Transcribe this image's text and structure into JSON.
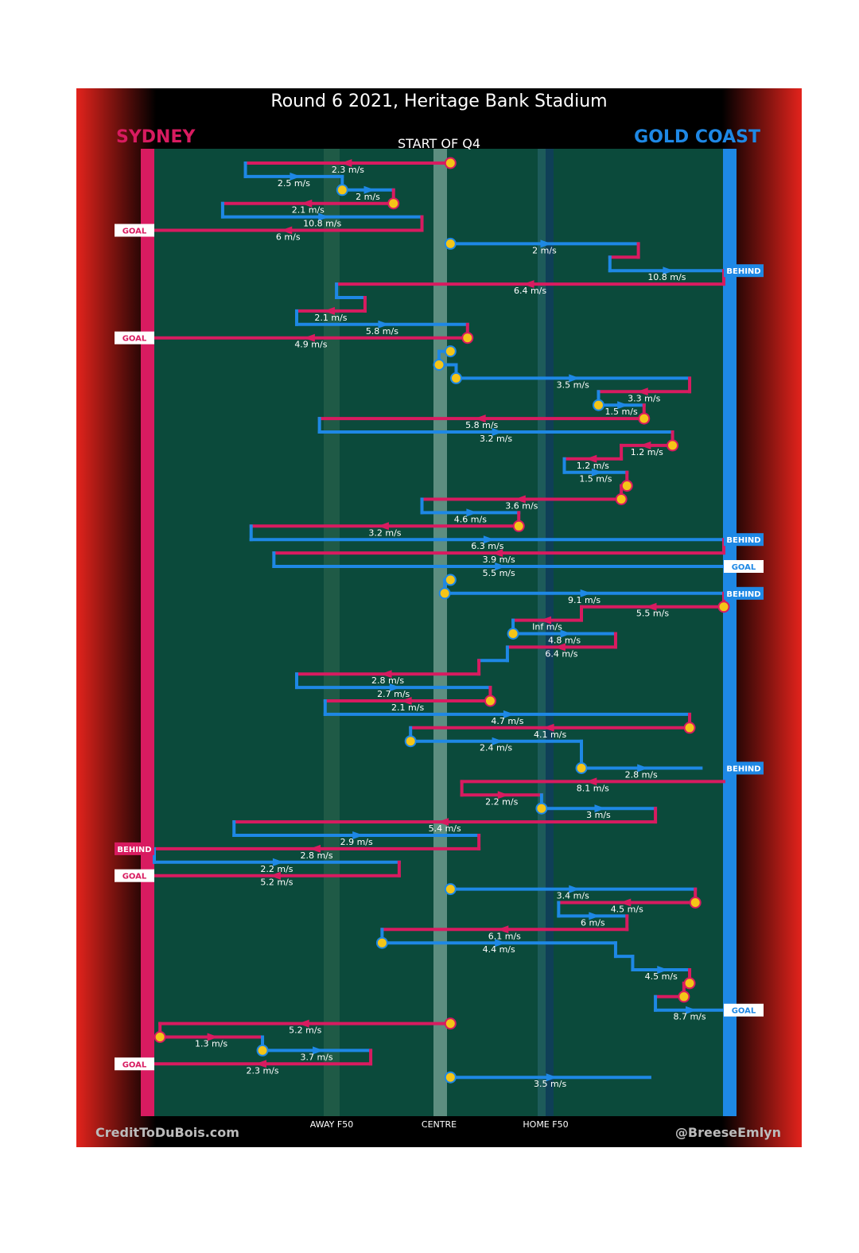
{
  "chart_data": {
    "type": "line",
    "title": "Round 6 2021, Heritage Bank Stadium",
    "subtitle": "START OF Q4",
    "teams": {
      "left": {
        "name": "SYDNEY",
        "color": "#d81b60"
      },
      "right": {
        "name": "GOLD COAST",
        "color": "#1e88e5"
      }
    },
    "colors": {
      "field": "#0b4a3b",
      "ball_marker": "#f5c518",
      "background_edge": "#e0221c"
    },
    "field_markers": [
      "AWAY F50",
      "CENTRE",
      "HOME F50"
    ],
    "credits": {
      "left": "CreditToDuBois.com",
      "right": "@BreeseEmlyn"
    },
    "x_range": [
      0,
      100
    ],
    "chains": [
      {
        "y": 1,
        "team": "SYDNEY",
        "x": [
          52,
          16
        ],
        "speed": "2.3 m/s"
      },
      {
        "y": 2,
        "team": "GOLD COAST",
        "x": [
          16,
          33
        ],
        "speed": "2.5 m/s"
      },
      {
        "y": 3,
        "team": "GOLD COAST",
        "x": [
          33,
          42
        ],
        "speed": "2 m/s"
      },
      {
        "y": 4,
        "team": "SYDNEY",
        "x": [
          42,
          12
        ],
        "speed": "2.1 m/s"
      },
      {
        "y": 5,
        "team": "GOLD COAST",
        "x": [
          12,
          47
        ],
        "speed": "10.8 m/s"
      },
      {
        "y": 6,
        "team": "SYDNEY",
        "x": [
          47,
          0
        ],
        "speed": "6 m/s",
        "result": "GOAL"
      },
      {
        "y": 7,
        "team": "GOLD COAST",
        "x": [
          52,
          85
        ],
        "speed": "2 m/s"
      },
      {
        "y": 8,
        "team": "SYDNEY",
        "x": [
          85,
          80
        ],
        "speed": ""
      },
      {
        "y": 9,
        "team": "GOLD COAST",
        "x": [
          80,
          100
        ],
        "speed": "10.8 m/s",
        "result": "BEHIND"
      },
      {
        "y": 10,
        "team": "SYDNEY",
        "x": [
          100,
          32
        ],
        "speed": "6.4 m/s"
      },
      {
        "y": 11,
        "team": "GOLD COAST",
        "x": [
          32,
          37
        ],
        "speed": ""
      },
      {
        "y": 12,
        "team": "SYDNEY",
        "x": [
          37,
          25
        ],
        "speed": "2.1 m/s"
      },
      {
        "y": 13,
        "team": "GOLD COAST",
        "x": [
          25,
          55
        ],
        "speed": "5.8 m/s"
      },
      {
        "y": 14,
        "team": "SYDNEY",
        "x": [
          55,
          0
        ],
        "speed": "4.9 m/s",
        "result": "GOAL"
      },
      {
        "y": 15,
        "team": "GOLD COAST",
        "x": [
          52,
          50
        ],
        "speed": ""
      },
      {
        "y": 16,
        "team": "GOLD COAST",
        "x": [
          50,
          53
        ],
        "speed": ""
      },
      {
        "y": 17,
        "team": "GOLD COAST",
        "x": [
          53,
          94
        ],
        "speed": "3.5 m/s"
      },
      {
        "y": 18,
        "team": "SYDNEY",
        "x": [
          94,
          78
        ],
        "speed": "3.3 m/s"
      },
      {
        "y": 19,
        "team": "GOLD COAST",
        "x": [
          78,
          86
        ],
        "speed": "1.5 m/s"
      },
      {
        "y": 20,
        "team": "SYDNEY",
        "x": [
          86,
          29
        ],
        "speed": "5.8 m/s"
      },
      {
        "y": 21,
        "team": "GOLD COAST",
        "x": [
          29,
          91
        ],
        "speed": "3.2 m/s"
      },
      {
        "y": 22,
        "team": "SYDNEY",
        "x": [
          91,
          82
        ],
        "speed": "1.2 m/s"
      },
      {
        "y": 23,
        "team": "SYDNEY",
        "x": [
          82,
          72
        ],
        "speed": "1.2 m/s"
      },
      {
        "y": 24,
        "team": "GOLD COAST",
        "x": [
          72,
          83
        ],
        "speed": "1.5 m/s"
      },
      {
        "y": 25,
        "team": "SYDNEY",
        "x": [
          83,
          82
        ],
        "speed": ""
      },
      {
        "y": 26,
        "team": "SYDNEY",
        "x": [
          82,
          47
        ],
        "speed": "3.6 m/s"
      },
      {
        "y": 27,
        "team": "GOLD COAST",
        "x": [
          47,
          64
        ],
        "speed": "4.6 m/s"
      },
      {
        "y": 28,
        "team": "SYDNEY",
        "x": [
          64,
          17
        ],
        "speed": "3.2 m/s"
      },
      {
        "y": 29,
        "team": "GOLD COAST",
        "x": [
          17,
          100
        ],
        "speed": "6.3 m/s",
        "result": "BEHIND"
      },
      {
        "y": 30,
        "team": "SYDNEY",
        "x": [
          100,
          21
        ],
        "speed": "3.9 m/s"
      },
      {
        "y": 31,
        "team": "GOLD COAST",
        "x": [
          21,
          100
        ],
        "speed": "5.5 m/s",
        "result": "GOAL"
      },
      {
        "y": 32,
        "team": "GOLD COAST",
        "x": [
          52,
          51
        ],
        "speed": ""
      },
      {
        "y": 33,
        "team": "GOLD COAST",
        "x": [
          51,
          100
        ],
        "speed": "9.1 m/s",
        "result": "BEHIND"
      },
      {
        "y": 34,
        "team": "SYDNEY",
        "x": [
          100,
          75
        ],
        "speed": "5.5 m/s"
      },
      {
        "y": 35,
        "team": "SYDNEY",
        "x": [
          75,
          63
        ],
        "speed": "Inf m/s"
      },
      {
        "y": 36,
        "team": "GOLD COAST",
        "x": [
          63,
          81
        ],
        "speed": "4.8 m/s"
      },
      {
        "y": 37,
        "team": "SYDNEY",
        "x": [
          81,
          62
        ],
        "speed": "6.4 m/s"
      },
      {
        "y": 38,
        "team": "GOLD COAST",
        "x": [
          62,
          57
        ],
        "speed": ""
      },
      {
        "y": 39,
        "team": "SYDNEY",
        "x": [
          57,
          25
        ],
        "speed": "2.8 m/s"
      },
      {
        "y": 40,
        "team": "GOLD COAST",
        "x": [
          25,
          59
        ],
        "speed": "2.7 m/s"
      },
      {
        "y": 41,
        "team": "SYDNEY",
        "x": [
          59,
          30
        ],
        "speed": "2.1 m/s"
      },
      {
        "y": 42,
        "team": "GOLD COAST",
        "x": [
          30,
          94
        ],
        "speed": "4.7 m/s"
      },
      {
        "y": 43,
        "team": "SYDNEY",
        "x": [
          94,
          45
        ],
        "speed": "4.1 m/s"
      },
      {
        "y": 44,
        "team": "GOLD COAST",
        "x": [
          45,
          75
        ],
        "speed": "2.4 m/s"
      },
      {
        "y": 45,
        "team": "GOLD COAST",
        "x": [
          75,
          75
        ],
        "speed": ""
      },
      {
        "y": 46,
        "team": "GOLD COAST",
        "x": [
          75,
          96
        ],
        "speed": "2.8 m/s",
        "result": "BEHIND"
      },
      {
        "y": 47,
        "team": "SYDNEY",
        "x": [
          100,
          54
        ],
        "speed": "8.1 m/s"
      },
      {
        "y": 48,
        "team": "SYDNEY",
        "x": [
          54,
          68
        ],
        "speed": "2.2 m/s"
      },
      {
        "y": 49,
        "team": "GOLD COAST",
        "x": [
          68,
          88
        ],
        "speed": "3 m/s"
      },
      {
        "y": 50,
        "team": "SYDNEY",
        "x": [
          88,
          14
        ],
        "speed": "5.4 m/s"
      },
      {
        "y": 51,
        "team": "GOLD COAST",
        "x": [
          14,
          57
        ],
        "speed": "2.9 m/s"
      },
      {
        "y": 52,
        "team": "SYDNEY",
        "x": [
          57,
          0
        ],
        "speed": "2.8 m/s",
        "result": "BEHIND"
      },
      {
        "y": 53,
        "team": "GOLD COAST",
        "x": [
          0,
          43
        ],
        "speed": "2.2 m/s"
      },
      {
        "y": 54,
        "team": "SYDNEY",
        "x": [
          43,
          0
        ],
        "speed": "5.2 m/s",
        "result": "GOAL"
      },
      {
        "y": 55,
        "team": "GOLD COAST",
        "x": [
          52,
          95
        ],
        "speed": "3.4 m/s"
      },
      {
        "y": 56,
        "team": "SYDNEY",
        "x": [
          95,
          71
        ],
        "speed": "4.5 m/s"
      },
      {
        "y": 57,
        "team": "GOLD COAST",
        "x": [
          71,
          83
        ],
        "speed": "6 m/s"
      },
      {
        "y": 58,
        "team": "SYDNEY",
        "x": [
          83,
          40
        ],
        "speed": "6.1 m/s"
      },
      {
        "y": 59,
        "team": "GOLD COAST",
        "x": [
          40,
          81
        ],
        "speed": "4.4 m/s"
      },
      {
        "y": 60,
        "team": "GOLD COAST",
        "x": [
          81,
          84
        ],
        "speed": ""
      },
      {
        "y": 61,
        "team": "GOLD COAST",
        "x": [
          84,
          94
        ],
        "speed": "4.5 m/s"
      },
      {
        "y": 62,
        "team": "SYDNEY",
        "x": [
          94,
          93
        ],
        "speed": ""
      },
      {
        "y": 63,
        "team": "SYDNEY",
        "x": [
          93,
          88
        ],
        "speed": ""
      },
      {
        "y": 64,
        "team": "GOLD COAST",
        "x": [
          88,
          100
        ],
        "speed": "8.7 m/s",
        "result": "GOAL"
      },
      {
        "y": 65,
        "team": "SYDNEY",
        "x": [
          52,
          1
        ],
        "speed": "5.2 m/s"
      },
      {
        "y": 66,
        "team": "SYDNEY",
        "x": [
          1,
          19
        ],
        "speed": "1.3 m/s"
      },
      {
        "y": 67,
        "team": "GOLD COAST",
        "x": [
          19,
          38
        ],
        "speed": "3.7 m/s"
      },
      {
        "y": 68,
        "team": "SYDNEY",
        "x": [
          38,
          0
        ],
        "speed": "2.3 m/s",
        "result": "GOAL"
      },
      {
        "y": 69,
        "team": "GOLD COAST",
        "x": [
          52,
          87
        ],
        "speed": "3.5 m/s"
      }
    ],
    "ball_markers": [
      1,
      3,
      4,
      7,
      14,
      15,
      16,
      17,
      19,
      20,
      22,
      25,
      26,
      28,
      32,
      33,
      34,
      36,
      41,
      43,
      44,
      46,
      49,
      55,
      56,
      59,
      62,
      63,
      65,
      66,
      67,
      69
    ]
  }
}
